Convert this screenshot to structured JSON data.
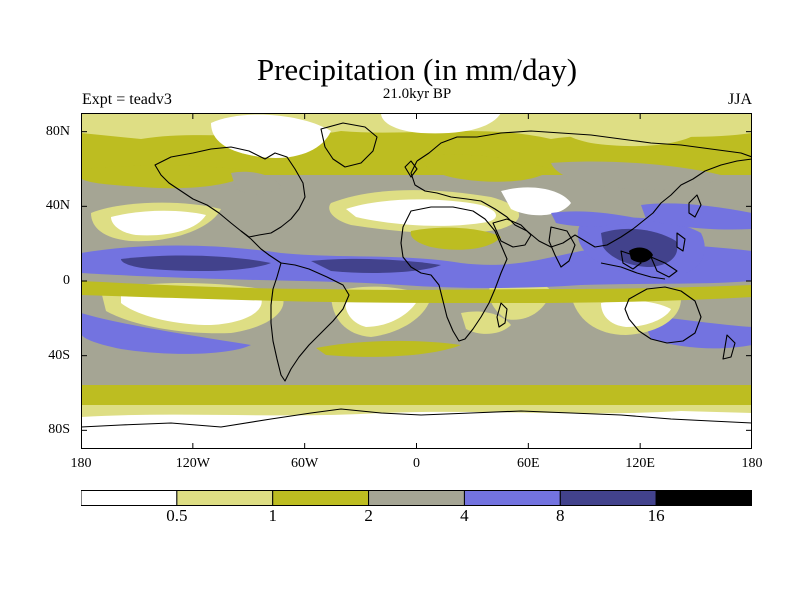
{
  "title": "Precipitation (in mm/day)",
  "subtitle": "21.0kyr BP",
  "left_label": "Expt = teadv3",
  "right_label": "JJA",
  "y_ticks": [
    {
      "lat": 80,
      "label": "80N"
    },
    {
      "lat": 40,
      "label": "40N"
    },
    {
      "lat": 0,
      "label": "0"
    },
    {
      "lat": -40,
      "label": "40S"
    },
    {
      "lat": -80,
      "label": "80S"
    }
  ],
  "x_ticks": [
    {
      "lon": -180,
      "label": "180"
    },
    {
      "lon": -120,
      "label": "120W"
    },
    {
      "lon": -60,
      "label": "60W"
    },
    {
      "lon": 0,
      "label": "0"
    },
    {
      "lon": 60,
      "label": "60E"
    },
    {
      "lon": 120,
      "label": "120E"
    },
    {
      "lon": 180,
      "label": "180"
    }
  ],
  "colorbar": {
    "colors": [
      "#ffffff",
      "#dede84",
      "#bdbd21",
      "#a5a594",
      "#7373e0",
      "#42428c",
      "#000000"
    ],
    "labels": [
      "0.5",
      "1",
      "2",
      "4",
      "8",
      "16"
    ]
  },
  "map_domain": {
    "lon_range": [
      -180,
      180
    ],
    "lat_range": [
      -90,
      90
    ]
  }
}
